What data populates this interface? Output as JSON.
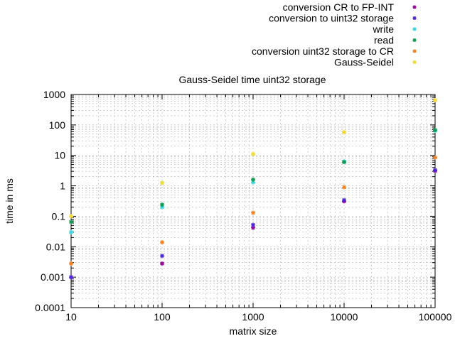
{
  "chart_data": {
    "type": "scatter",
    "title": "Gauss-Seidel time uint32 storage",
    "xlabel": "matrix size",
    "ylabel": "time in ms",
    "x_scale": "log",
    "y_scale": "log",
    "xlim": [
      10,
      100000
    ],
    "ylim": [
      0.0001,
      1000
    ],
    "x_ticks": [
      10,
      100,
      1000,
      10000,
      100000
    ],
    "x_tick_labels": [
      "10",
      "100",
      "1000",
      "10000",
      "100000"
    ],
    "y_ticks": [
      0.0001,
      0.001,
      0.01,
      0.1,
      1,
      10,
      100,
      1000
    ],
    "y_tick_labels": [
      "0.0001",
      "0.001",
      "0.01",
      "0.1",
      "1",
      "10",
      "100",
      "1000"
    ],
    "grid": true,
    "legend_position": "top-right, outside plot",
    "x": [
      10,
      100,
      1000,
      10000,
      100000
    ],
    "series": [
      {
        "name": "conversion CR to FP-INT",
        "color": "#940094",
        "values": [
          0.001,
          0.0028,
          0.042,
          0.31,
          3.1
        ]
      },
      {
        "name": "conversion to uint32 storage",
        "color": "#4b22e6",
        "values": [
          0.001,
          0.005,
          0.052,
          0.34,
          3.3
        ]
      },
      {
        "name": "write",
        "color": "#2fd6e0",
        "values": [
          0.03,
          0.2,
          1.3,
          6.3,
          65
        ]
      },
      {
        "name": "read",
        "color": "#0c9a4c",
        "values": [
          0.065,
          0.24,
          1.6,
          6.0,
          68
        ]
      },
      {
        "name": "conversion uint32 storage to CR",
        "color": "#f5801d",
        "values": [
          0.0028,
          0.014,
          0.13,
          0.9,
          8.5
        ]
      },
      {
        "name": "Gauss-Seidel",
        "color": "#f3d92a",
        "values": [
          0.1,
          1.25,
          11,
          58,
          650
        ]
      }
    ]
  }
}
